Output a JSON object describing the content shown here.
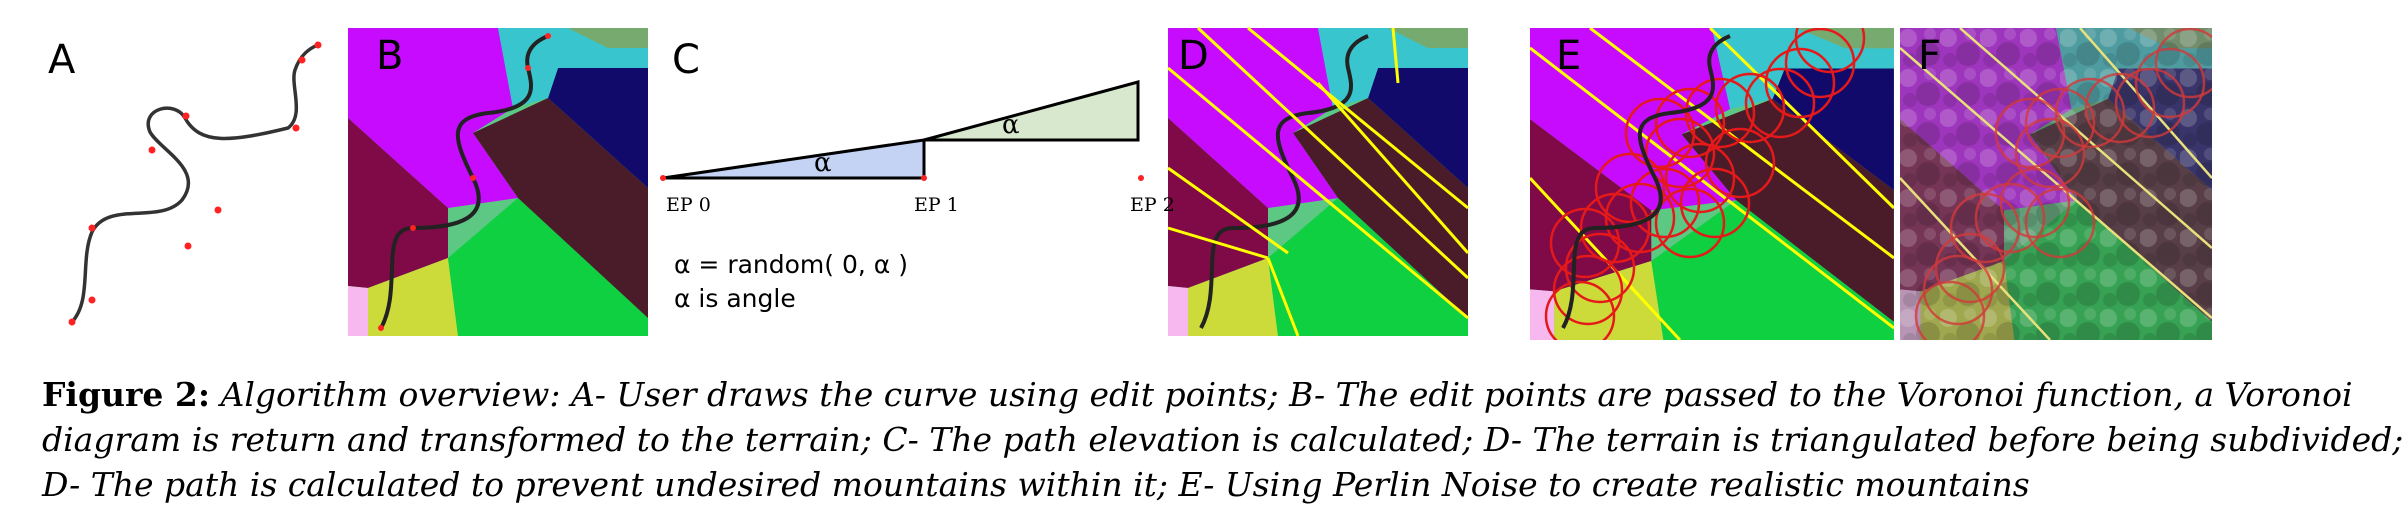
{
  "panels": {
    "a": {
      "label": "A"
    },
    "b": {
      "label": "B"
    },
    "c": {
      "label": "C",
      "angle_label_1": "α",
      "angle_label_2": "α",
      "ep0": "EP 0",
      "ep1": "EP 1",
      "ep2": "EP 2",
      "formula": "α = random( 0, α )",
      "note": "α is angle"
    },
    "d": {
      "label": "D"
    },
    "e": {
      "label": "E"
    },
    "f": {
      "label": "F"
    }
  },
  "caption": {
    "label": "Figure 2:",
    "line1": "Algorithm overview: A- User draws the curve using edit points; B- The edit points are passed to the Voronoi function, a Voronoi",
    "line2": "diagram is return and transformed to the terrain; C- The path elevation is calculated; D- The terrain is triangulated before being subdivided;",
    "line3": "D- The path is calculated to prevent undesired mountains within it; E- Using Perlin Noise to create realistic mountains"
  },
  "colors": {
    "green": "#5cc884",
    "magenta": "#c70bff",
    "maroon": "#7f0a47",
    "cyan": "#39c5cd",
    "navy": "#120a6b",
    "sage": "#77aa6e",
    "brown": "#4a1c2a",
    "bright_green": "#0ed040",
    "yellow_green": "#cddb3a",
    "pink": "#f7b8f0",
    "edit_point": "#ff2222",
    "triangle_line": "#ffff00",
    "circle": "#e51919"
  }
}
